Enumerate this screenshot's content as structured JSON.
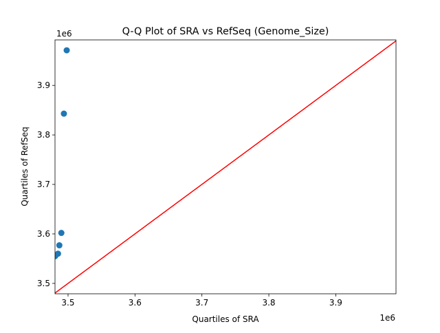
{
  "chart_data": {
    "type": "scatter",
    "title": "Q-Q Plot of SRA vs RefSeq (Genome_Size)",
    "xlabel": "Quartiles of SRA",
    "ylabel": "Quartiles of RefSeq",
    "x_offset_label": "1e6",
    "y_offset_label": "1e6",
    "xlim": [
      3.4805,
      3.99
    ],
    "ylim": [
      3.479,
      3.992
    ],
    "xticks": [
      3.5,
      3.6,
      3.7,
      3.8,
      3.9
    ],
    "yticks": [
      3.5,
      3.6,
      3.7,
      3.8,
      3.9
    ],
    "xtick_labels": [
      "3.5",
      "3.6",
      "3.7",
      "3.8",
      "3.9"
    ],
    "ytick_labels": [
      "3.5",
      "3.6",
      "3.7",
      "3.8",
      "3.9"
    ],
    "grid": false,
    "points": [
      {
        "x": 3.4807,
        "y": 3.555
      },
      {
        "x": 3.485,
        "y": 3.56
      },
      {
        "x": 3.487,
        "y": 3.577
      },
      {
        "x": 3.49,
        "y": 3.602
      },
      {
        "x": 3.4938,
        "y": 3.843
      },
      {
        "x": 3.498,
        "y": 3.971
      }
    ],
    "reference_line": {
      "from": [
        3.479,
        3.479
      ],
      "to": [
        3.992,
        3.992
      ]
    },
    "colors": {
      "points": "#1f77b4",
      "line": "#ff0000"
    }
  }
}
